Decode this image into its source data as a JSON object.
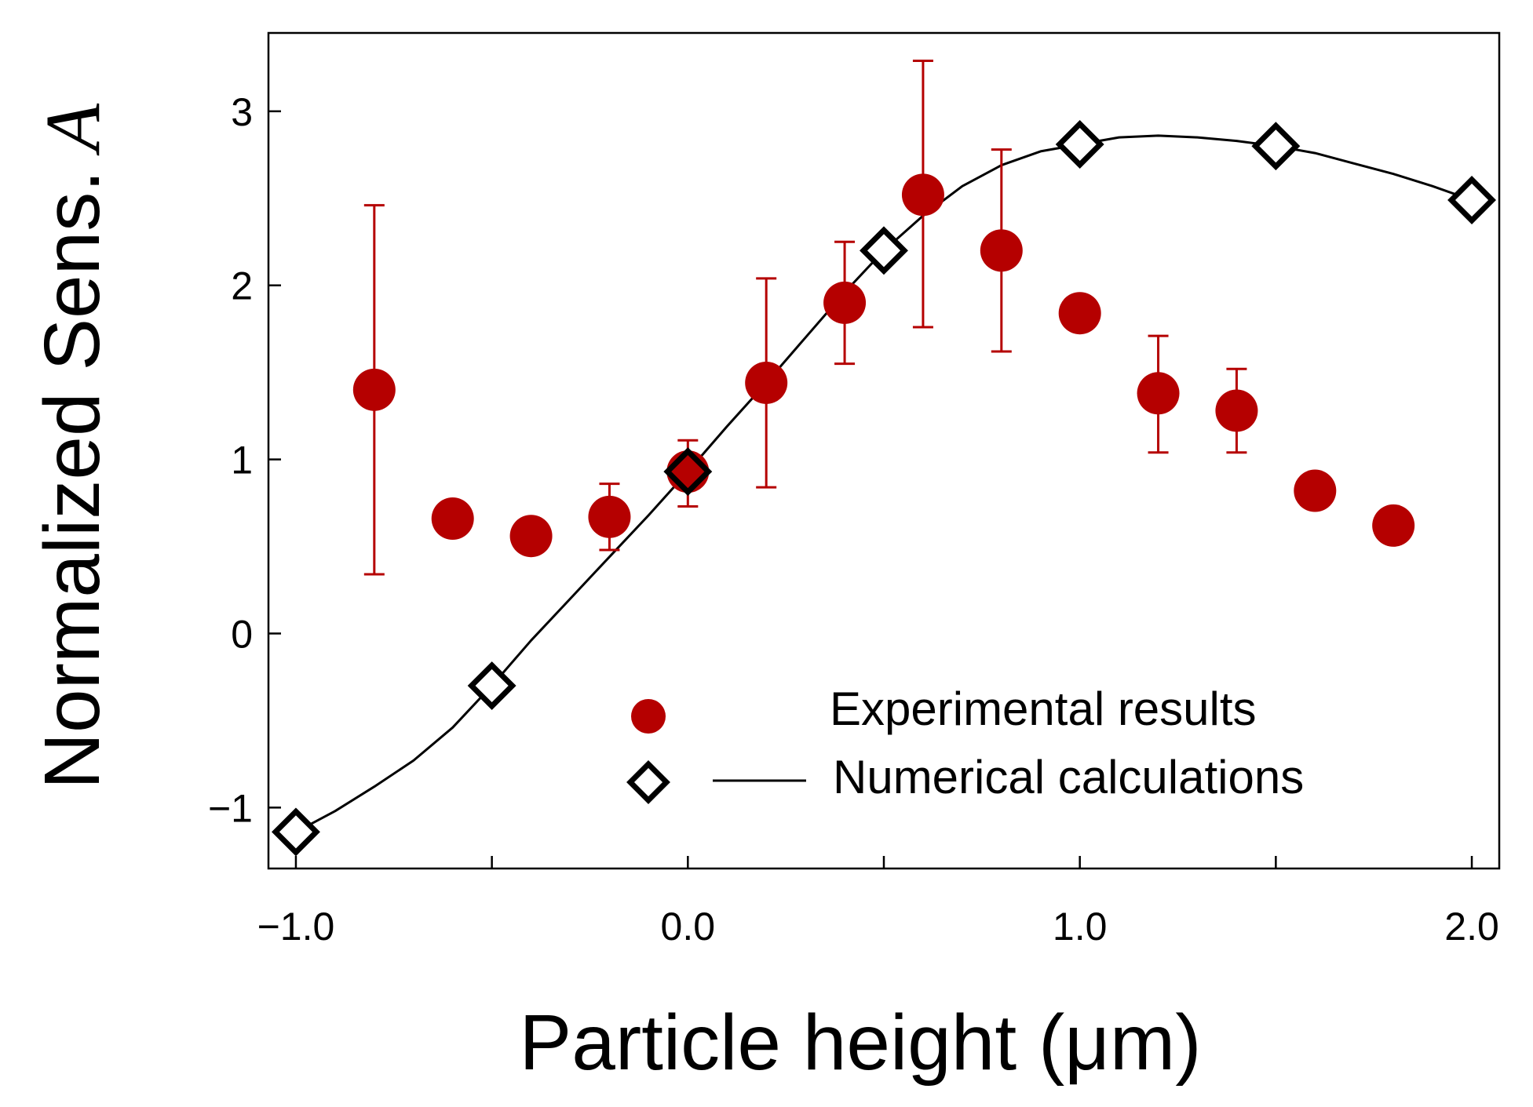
{
  "chart_data": {
    "type": "scatter",
    "title": "",
    "xlabel": "Particle height (μm)",
    "ylabel": "Normalized Sens.",
    "ylabel_symbol": "A",
    "xlim": [
      -1.07,
      2.07
    ],
    "ylim": [
      -1.35,
      3.45
    ],
    "xticks": [
      -1.0,
      -0.5,
      0.0,
      0.5,
      1.0,
      1.5,
      2.0
    ],
    "xtick_labels": [
      "−1.0",
      "",
      "0.0",
      "",
      "1.0",
      "",
      "2.0"
    ],
    "yticks": [
      -1,
      0,
      1,
      2,
      3
    ],
    "ytick_labels": [
      "−1",
      "0",
      "1",
      "2",
      "3"
    ],
    "legend_position": "bottom-right",
    "colors": {
      "experimental": "#b50000",
      "numerical": "#000000",
      "axis": "#000000"
    },
    "series": [
      {
        "name": "Experimental results",
        "marker": "filled-circle",
        "points": [
          {
            "x": -0.8,
            "y": 1.4,
            "err_low": 0.34,
            "err_high": 2.46
          },
          {
            "x": -0.6,
            "y": 0.66
          },
          {
            "x": -0.4,
            "y": 0.56
          },
          {
            "x": -0.2,
            "y": 0.67,
            "err_low": 0.48,
            "err_high": 0.86
          },
          {
            "x": 0.0,
            "y": 0.93,
            "err_low": 0.73,
            "err_high": 1.11
          },
          {
            "x": 0.2,
            "y": 1.44,
            "err_low": 0.84,
            "err_high": 2.04
          },
          {
            "x": 0.4,
            "y": 1.9,
            "err_low": 1.55,
            "err_high": 2.25
          },
          {
            "x": 0.6,
            "y": 2.52,
            "err_low": 1.76,
            "err_high": 3.29
          },
          {
            "x": 0.8,
            "y": 2.2,
            "err_low": 1.62,
            "err_high": 2.78
          },
          {
            "x": 1.0,
            "y": 1.84
          },
          {
            "x": 1.2,
            "y": 1.38,
            "err_low": 1.04,
            "err_high": 1.71
          },
          {
            "x": 1.4,
            "y": 1.28,
            "err_low": 1.04,
            "err_high": 1.52
          },
          {
            "x": 1.6,
            "y": 0.82
          },
          {
            "x": 1.8,
            "y": 0.62
          }
        ]
      },
      {
        "name": "Numerical calculations",
        "marker": "open-diamond",
        "line": "smooth",
        "points": [
          {
            "x": -1.0,
            "y": -1.14
          },
          {
            "x": -0.5,
            "y": -0.3
          },
          {
            "x": 0.0,
            "y": 0.93
          },
          {
            "x": 0.5,
            "y": 2.2
          },
          {
            "x": 1.0,
            "y": 2.81
          },
          {
            "x": 1.5,
            "y": 2.8
          },
          {
            "x": 2.0,
            "y": 2.49
          }
        ],
        "curve": {
          "x": [
            -1.0,
            -0.9,
            -0.8,
            -0.7,
            -0.6,
            -0.5,
            -0.4,
            -0.3,
            -0.2,
            -0.1,
            0.0,
            0.1,
            0.2,
            0.3,
            0.4,
            0.5,
            0.6,
            0.7,
            0.8,
            0.9,
            1.0,
            1.1,
            1.2,
            1.3,
            1.4,
            1.5,
            1.6,
            1.7,
            1.8,
            1.9,
            2.0
          ],
          "y": [
            -1.14,
            -1.02,
            -0.88,
            -0.73,
            -0.54,
            -0.3,
            -0.04,
            0.2,
            0.44,
            0.68,
            0.93,
            1.19,
            1.44,
            1.7,
            1.96,
            2.2,
            2.4,
            2.57,
            2.69,
            2.77,
            2.81,
            2.85,
            2.86,
            2.85,
            2.83,
            2.8,
            2.76,
            2.7,
            2.64,
            2.57,
            2.49
          ]
        }
      }
    ]
  }
}
